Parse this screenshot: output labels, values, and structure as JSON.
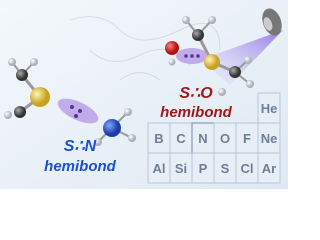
{
  "labels": {
    "left_bond": "S∴N",
    "left_word": "hemibond",
    "right_bond": "S∴O",
    "right_word": "hemibond"
  },
  "periodic_table": {
    "row1": [
      "He"
    ],
    "row2": [
      "B",
      "C",
      "N",
      "O",
      "F",
      "Ne"
    ],
    "row3": [
      "Al",
      "Si",
      "P",
      "S",
      "Cl",
      "Ar"
    ]
  }
}
